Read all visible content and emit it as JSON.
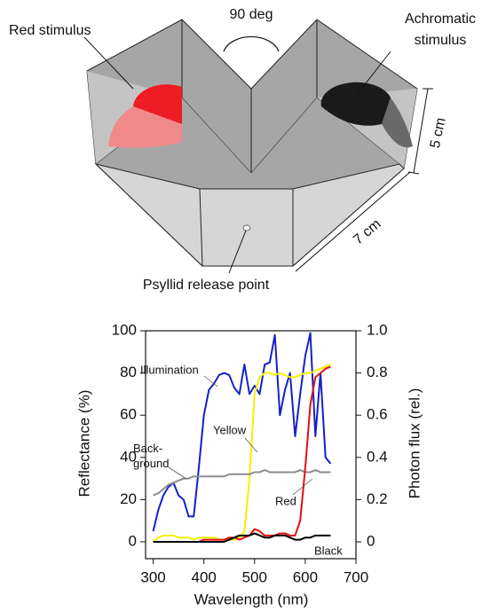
{
  "diagram": {
    "angle_label": "90 deg",
    "red_label": "Red stimulus",
    "achromatic_label": [
      "Achromatic",
      "stimulus"
    ],
    "height_label": "5 cm",
    "length_label": "7 cm",
    "release_label": "Psyllid release point"
  },
  "chart_data": {
    "type": "line",
    "x_label": "Wavelength (nm)",
    "y_label": "Reflectance (%)",
    "y2_label": "Photon flux (rel.)",
    "xlim": [
      285,
      700
    ],
    "xticks": [
      300,
      400,
      500,
      600,
      700
    ],
    "ylim": [
      -8,
      100
    ],
    "yticks": [
      0,
      20,
      40,
      60,
      80,
      100
    ],
    "y2lim": [
      -0.08,
      1.0
    ],
    "y2ticks": [
      0,
      0.2,
      0.4,
      0.6,
      0.8,
      {
        "value": 1,
        "label": "1.0"
      }
    ],
    "x": [
      300,
      310,
      320,
      330,
      340,
      350,
      360,
      370,
      380,
      390,
      400,
      410,
      420,
      430,
      440,
      450,
      460,
      470,
      480,
      490,
      500,
      510,
      520,
      530,
      540,
      550,
      560,
      570,
      580,
      590,
      600,
      610,
      620,
      630,
      640,
      650
    ],
    "series": [
      {
        "name": "Illumination",
        "color": "#1420c8",
        "axis": "y2",
        "values": [
          0.05,
          0.15,
          0.22,
          0.26,
          0.28,
          0.22,
          0.2,
          0.12,
          0.12,
          0.35,
          0.6,
          0.72,
          0.75,
          0.79,
          0.8,
          0.79,
          0.73,
          0.7,
          0.84,
          0.7,
          0.74,
          0.7,
          0.84,
          0.85,
          0.98,
          0.6,
          0.72,
          0.8,
          0.5,
          0.7,
          0.88,
          0.99,
          0.5,
          0.8,
          0.4,
          0.37
        ]
      },
      {
        "name": "Yellow",
        "color": "#f5f000",
        "values": [
          0,
          2,
          3,
          3,
          3,
          2,
          2,
          2,
          1,
          2,
          2,
          2,
          2,
          1,
          1,
          1,
          1,
          2,
          5,
          30,
          70,
          78,
          80,
          80,
          79,
          80,
          79,
          78,
          78,
          79,
          80,
          80,
          81,
          82,
          83,
          84
        ]
      },
      {
        "name": "Back-ground",
        "color": "#8c8c8c",
        "values": [
          22,
          23,
          25,
          27,
          28,
          29,
          30,
          30,
          31,
          31,
          31,
          31,
          31,
          31,
          31,
          32,
          32,
          32,
          32,
          32,
          33,
          33,
          34,
          33,
          33,
          33,
          33,
          33,
          33,
          34,
          33,
          33,
          34,
          33,
          33,
          33
        ]
      },
      {
        "name": "Red",
        "color": "#e01010",
        "values": [
          0,
          0,
          0,
          0,
          0,
          0,
          0,
          0,
          0,
          0,
          1,
          1,
          1,
          1,
          1,
          2,
          2,
          1,
          2,
          3,
          6,
          5,
          3,
          3,
          3,
          4,
          4,
          3,
          3,
          10,
          35,
          65,
          78,
          80,
          82,
          83
        ]
      },
      {
        "name": "Black",
        "color": "#000000",
        "values": [
          0,
          0,
          0,
          0,
          0,
          0,
          0,
          0,
          0,
          0,
          0,
          0,
          0,
          0,
          0,
          1,
          2,
          3,
          3,
          3,
          4,
          3,
          2,
          2,
          3,
          3,
          3,
          2,
          1,
          1,
          2,
          2,
          3,
          3,
          3,
          3
        ]
      }
    ]
  }
}
